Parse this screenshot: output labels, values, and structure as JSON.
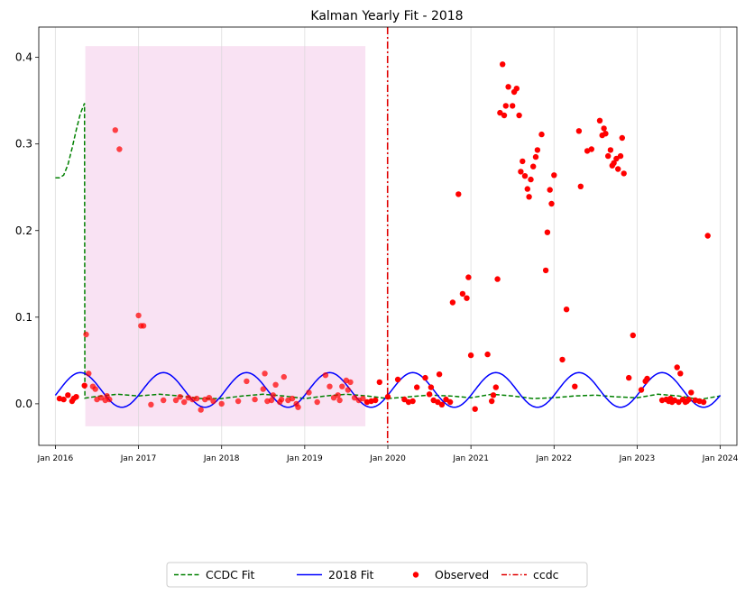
{
  "chart_data": {
    "type": "scatter",
    "title": "Kalman Yearly Fit - 2018",
    "xlabel": "",
    "ylabel": "",
    "x_unit": "decimal year",
    "xlim": [
      2015.8,
      2024.2
    ],
    "ylim": [
      -0.048,
      0.435
    ],
    "x_ticks": [
      {
        "value": 2016,
        "label": "Jan 2016"
      },
      {
        "value": 2017,
        "label": "Jan 2017"
      },
      {
        "value": 2018,
        "label": "Jan 2018"
      },
      {
        "value": 2019,
        "label": "Jan 2019"
      },
      {
        "value": 2020,
        "label": "Jan 2020"
      },
      {
        "value": 2021,
        "label": "Jan 2021"
      },
      {
        "value": 2022,
        "label": "Jan 2022"
      },
      {
        "value": 2023,
        "label": "Jan 2023"
      },
      {
        "value": 2024,
        "label": "Jan 2024"
      }
    ],
    "y_ticks": [
      {
        "value": 0.0,
        "label": "0.0"
      },
      {
        "value": 0.1,
        "label": "0.1"
      },
      {
        "value": 0.2,
        "label": "0.2"
      },
      {
        "value": 0.3,
        "label": "0.3"
      },
      {
        "value": 0.4,
        "label": "0.4"
      }
    ],
    "grid": "vertical",
    "shaded_region": {
      "x": [
        2016.36,
        2019.73
      ],
      "y": [
        -0.026,
        0.413
      ],
      "color": "#f9e2f3"
    },
    "vertical_line": {
      "name": "ccdc",
      "x": 2019.997,
      "color": "#e00000",
      "style": "dashdot"
    },
    "series": [
      {
        "name": "CCDC Fit",
        "type": "line",
        "color": "#008000",
        "style": "dashed",
        "points": [
          [
            2016.0,
            0.261
          ],
          [
            2016.05,
            0.261
          ],
          [
            2016.1,
            0.264
          ],
          [
            2016.15,
            0.276
          ],
          [
            2016.2,
            0.295
          ],
          [
            2016.25,
            0.316
          ],
          [
            2016.3,
            0.335
          ],
          [
            2016.35,
            0.347
          ],
          [
            2016.355,
            0.0065
          ],
          [
            2016.5,
            0.0085
          ],
          [
            2016.75,
            0.011
          ],
          [
            2017.0,
            0.009
          ],
          [
            2017.25,
            0.011
          ],
          [
            2017.5,
            0.009
          ],
          [
            2017.75,
            0.006
          ],
          [
            2018.0,
            0.006
          ],
          [
            2018.25,
            0.009
          ],
          [
            2018.5,
            0.011
          ],
          [
            2018.75,
            0.009
          ],
          [
            2019.0,
            0.006
          ],
          [
            2019.25,
            0.009
          ],
          [
            2019.5,
            0.011
          ],
          [
            2019.75,
            0.009
          ],
          [
            2020.0,
            0.006
          ],
          [
            2020.25,
            0.008
          ],
          [
            2020.5,
            0.01
          ],
          [
            2020.75,
            0.009
          ],
          [
            2021.0,
            0.007
          ],
          [
            2021.25,
            0.011
          ],
          [
            2021.5,
            0.009
          ],
          [
            2021.75,
            0.006
          ],
          [
            2022.0,
            0.007
          ],
          [
            2022.25,
            0.009
          ],
          [
            2022.5,
            0.01
          ],
          [
            2022.75,
            0.008
          ],
          [
            2023.0,
            0.007
          ],
          [
            2023.25,
            0.011
          ],
          [
            2023.5,
            0.009
          ],
          [
            2023.75,
            0.005
          ],
          [
            2024.0,
            0.009
          ]
        ]
      },
      {
        "name": "2018 Fit",
        "type": "line",
        "color": "#0000ff",
        "style": "solid",
        "mean": 0.016,
        "amplitude": 0.02,
        "period": 1.0,
        "phase_peak": 2016.3,
        "x_range": [
          2016.0,
          2024.0
        ]
      },
      {
        "name": "Observed",
        "type": "scatter",
        "color": "#ff0000",
        "points": [
          [
            2016.05,
            0.006
          ],
          [
            2016.1,
            0.005
          ],
          [
            2016.15,
            0.01
          ],
          [
            2016.2,
            0.003
          ],
          [
            2016.22,
            0.006
          ],
          [
            2016.25,
            0.008
          ],
          [
            2016.35,
            0.021
          ],
          [
            2016.37,
            0.08
          ],
          [
            2016.4,
            0.035
          ],
          [
            2016.45,
            0.02
          ],
          [
            2016.48,
            0.017
          ],
          [
            2016.5,
            0.005
          ],
          [
            2016.55,
            0.007
          ],
          [
            2016.6,
            0.004
          ],
          [
            2016.62,
            0.009
          ],
          [
            2016.65,
            0.005
          ],
          [
            2016.72,
            0.316
          ],
          [
            2016.77,
            0.294
          ],
          [
            2017.0,
            0.102
          ],
          [
            2017.03,
            0.09
          ],
          [
            2017.06,
            0.09
          ],
          [
            2017.15,
            -0.001
          ],
          [
            2017.3,
            0.004
          ],
          [
            2017.45,
            0.004
          ],
          [
            2017.5,
            0.008
          ],
          [
            2017.55,
            0.002
          ],
          [
            2017.6,
            0.007
          ],
          [
            2017.65,
            0.005
          ],
          [
            2017.7,
            0.006
          ],
          [
            2017.75,
            -0.007
          ],
          [
            2017.8,
            0.005
          ],
          [
            2017.85,
            0.007
          ],
          [
            2017.9,
            0.003
          ],
          [
            2018.0,
            0.0
          ],
          [
            2018.2,
            0.003
          ],
          [
            2018.3,
            0.026
          ],
          [
            2018.4,
            0.005
          ],
          [
            2018.5,
            0.017
          ],
          [
            2018.52,
            0.035
          ],
          [
            2018.55,
            0.003
          ],
          [
            2018.6,
            0.004
          ],
          [
            2018.62,
            0.01
          ],
          [
            2018.65,
            0.022
          ],
          [
            2018.7,
            0.002
          ],
          [
            2018.72,
            0.005
          ],
          [
            2018.75,
            0.031
          ],
          [
            2018.8,
            0.004
          ],
          [
            2018.85,
            0.006
          ],
          [
            2018.9,
            0.0
          ],
          [
            2018.92,
            -0.004
          ],
          [
            2019.05,
            0.013
          ],
          [
            2019.15,
            0.002
          ],
          [
            2019.25,
            0.033
          ],
          [
            2019.3,
            0.02
          ],
          [
            2019.35,
            0.007
          ],
          [
            2019.4,
            0.01
          ],
          [
            2019.42,
            0.004
          ],
          [
            2019.45,
            0.02
          ],
          [
            2019.5,
            0.027
          ],
          [
            2019.52,
            0.016
          ],
          [
            2019.55,
            0.025
          ],
          [
            2019.6,
            0.007
          ],
          [
            2019.65,
            0.004
          ],
          [
            2019.7,
            0.006
          ],
          [
            2019.75,
            0.002
          ],
          [
            2019.8,
            0.003
          ],
          [
            2019.85,
            0.004
          ],
          [
            2019.9,
            0.025
          ],
          [
            2020.0,
            0.008
          ],
          [
            2020.12,
            0.028
          ],
          [
            2020.2,
            0.005
          ],
          [
            2020.25,
            0.002
          ],
          [
            2020.3,
            0.003
          ],
          [
            2020.35,
            0.019
          ],
          [
            2020.45,
            0.03
          ],
          [
            2020.5,
            0.011
          ],
          [
            2020.52,
            0.019
          ],
          [
            2020.55,
            0.004
          ],
          [
            2020.6,
            0.002
          ],
          [
            2020.62,
            0.034
          ],
          [
            2020.65,
            -0.001
          ],
          [
            2020.7,
            0.005
          ],
          [
            2020.75,
            0.002
          ],
          [
            2020.78,
            0.117
          ],
          [
            2020.85,
            0.242
          ],
          [
            2020.9,
            0.127
          ],
          [
            2020.95,
            0.122
          ],
          [
            2020.97,
            0.146
          ],
          [
            2021.0,
            0.056
          ],
          [
            2021.05,
            -0.006
          ],
          [
            2021.2,
            0.057
          ],
          [
            2021.25,
            0.003
          ],
          [
            2021.27,
            0.01
          ],
          [
            2021.3,
            0.019
          ],
          [
            2021.32,
            0.144
          ],
          [
            2021.35,
            0.336
          ],
          [
            2021.38,
            0.392
          ],
          [
            2021.4,
            0.333
          ],
          [
            2021.42,
            0.344
          ],
          [
            2021.45,
            0.366
          ],
          [
            2021.5,
            0.344
          ],
          [
            2021.52,
            0.36
          ],
          [
            2021.55,
            0.364
          ],
          [
            2021.58,
            0.333
          ],
          [
            2021.6,
            0.268
          ],
          [
            2021.62,
            0.28
          ],
          [
            2021.65,
            0.263
          ],
          [
            2021.68,
            0.248
          ],
          [
            2021.7,
            0.239
          ],
          [
            2021.72,
            0.259
          ],
          [
            2021.75,
            0.274
          ],
          [
            2021.78,
            0.285
          ],
          [
            2021.8,
            0.293
          ],
          [
            2021.85,
            0.311
          ],
          [
            2021.9,
            0.154
          ],
          [
            2021.92,
            0.198
          ],
          [
            2021.95,
            0.247
          ],
          [
            2021.97,
            0.231
          ],
          [
            2022.0,
            0.264
          ],
          [
            2022.1,
            0.051
          ],
          [
            2022.15,
            0.109
          ],
          [
            2022.25,
            0.02
          ],
          [
            2022.3,
            0.315
          ],
          [
            2022.32,
            0.251
          ],
          [
            2022.4,
            0.292
          ],
          [
            2022.45,
            0.294
          ],
          [
            2022.55,
            0.327
          ],
          [
            2022.58,
            0.31
          ],
          [
            2022.6,
            0.318
          ],
          [
            2022.62,
            0.312
          ],
          [
            2022.65,
            0.286
          ],
          [
            2022.68,
            0.293
          ],
          [
            2022.7,
            0.275
          ],
          [
            2022.72,
            0.278
          ],
          [
            2022.75,
            0.283
          ],
          [
            2022.77,
            0.271
          ],
          [
            2022.8,
            0.286
          ],
          [
            2022.82,
            0.307
          ],
          [
            2022.84,
            0.266
          ],
          [
            2022.9,
            0.03
          ],
          [
            2022.95,
            0.079
          ],
          [
            2023.05,
            0.016
          ],
          [
            2023.1,
            0.026
          ],
          [
            2023.12,
            0.029
          ],
          [
            2023.3,
            0.004
          ],
          [
            2023.35,
            0.005
          ],
          [
            2023.38,
            0.003
          ],
          [
            2023.4,
            0.006
          ],
          [
            2023.42,
            0.002
          ],
          [
            2023.45,
            0.004
          ],
          [
            2023.48,
            0.042
          ],
          [
            2023.5,
            0.002
          ],
          [
            2023.52,
            0.035
          ],
          [
            2023.55,
            0.005
          ],
          [
            2023.58,
            0.002
          ],
          [
            2023.6,
            0.003
          ],
          [
            2023.62,
            0.005
          ],
          [
            2023.65,
            0.013
          ],
          [
            2023.7,
            0.004
          ],
          [
            2023.75,
            0.003
          ],
          [
            2023.8,
            0.002
          ],
          [
            2023.85,
            0.194
          ]
        ]
      }
    ],
    "legend": {
      "placement": "bottom-center",
      "entries": [
        {
          "label": "CCDC Fit",
          "kind": "dashed-line",
          "color": "#008000"
        },
        {
          "label": "2018 Fit",
          "kind": "solid-line",
          "color": "#0000ff"
        },
        {
          "label": "Observed",
          "kind": "dot",
          "color": "#ff0000"
        },
        {
          "label": "ccdc",
          "kind": "dashdot-line",
          "color": "#e00000"
        }
      ]
    }
  }
}
